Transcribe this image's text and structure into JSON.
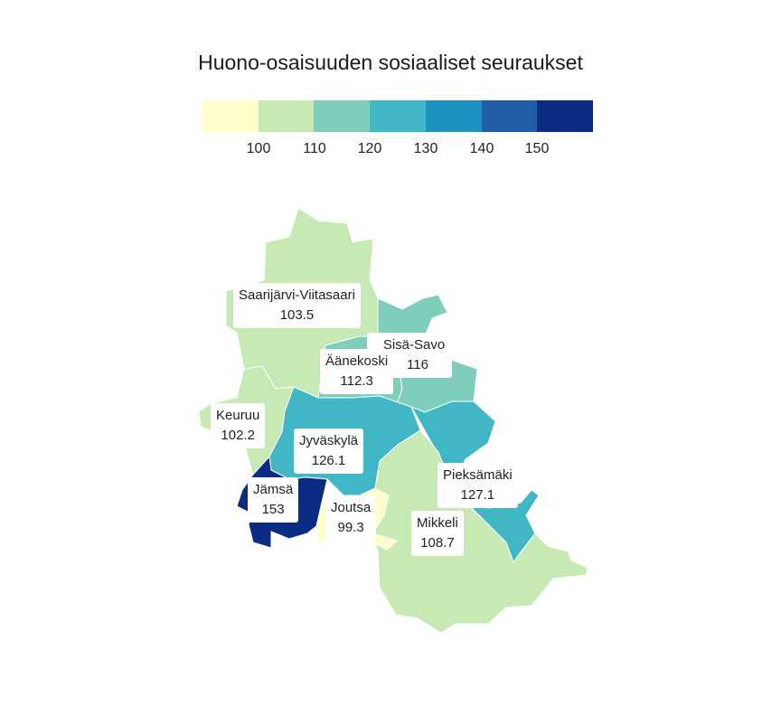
{
  "title": "Huono-osaisuuden sosiaaliset seuraukset",
  "legend": {
    "colors": [
      "#ffffcc",
      "#c7e9b4",
      "#7fcdbb",
      "#41b6c4",
      "#1d91c0",
      "#225ea8",
      "#0c2c84"
    ],
    "ticks": [
      "100",
      "110",
      "120",
      "130",
      "140",
      "150"
    ]
  },
  "regions": [
    {
      "name": "Saarijärvi-Viitasaari",
      "value": "103.5",
      "color": "#c7e9b4"
    },
    {
      "name": "Sisä-Savo",
      "value": "116",
      "color": "#7fcdbb"
    },
    {
      "name": "Äänekoski",
      "value": "112.3",
      "color": "#7fcdbb"
    },
    {
      "name": "Keuruu",
      "value": "102.2",
      "color": "#c7e9b4"
    },
    {
      "name": "Jyväskylä",
      "value": "126.1",
      "color": "#41b6c4"
    },
    {
      "name": "Pieksämäki",
      "value": "127.1",
      "color": "#41b6c4"
    },
    {
      "name": "Jämsä",
      "value": "153",
      "color": "#0c2c84"
    },
    {
      "name": "Joutsa",
      "value": "99.3",
      "color": "#ffffcc"
    },
    {
      "name": "Mikkeli",
      "value": "108.7",
      "color": "#c7e9b4"
    }
  ]
}
